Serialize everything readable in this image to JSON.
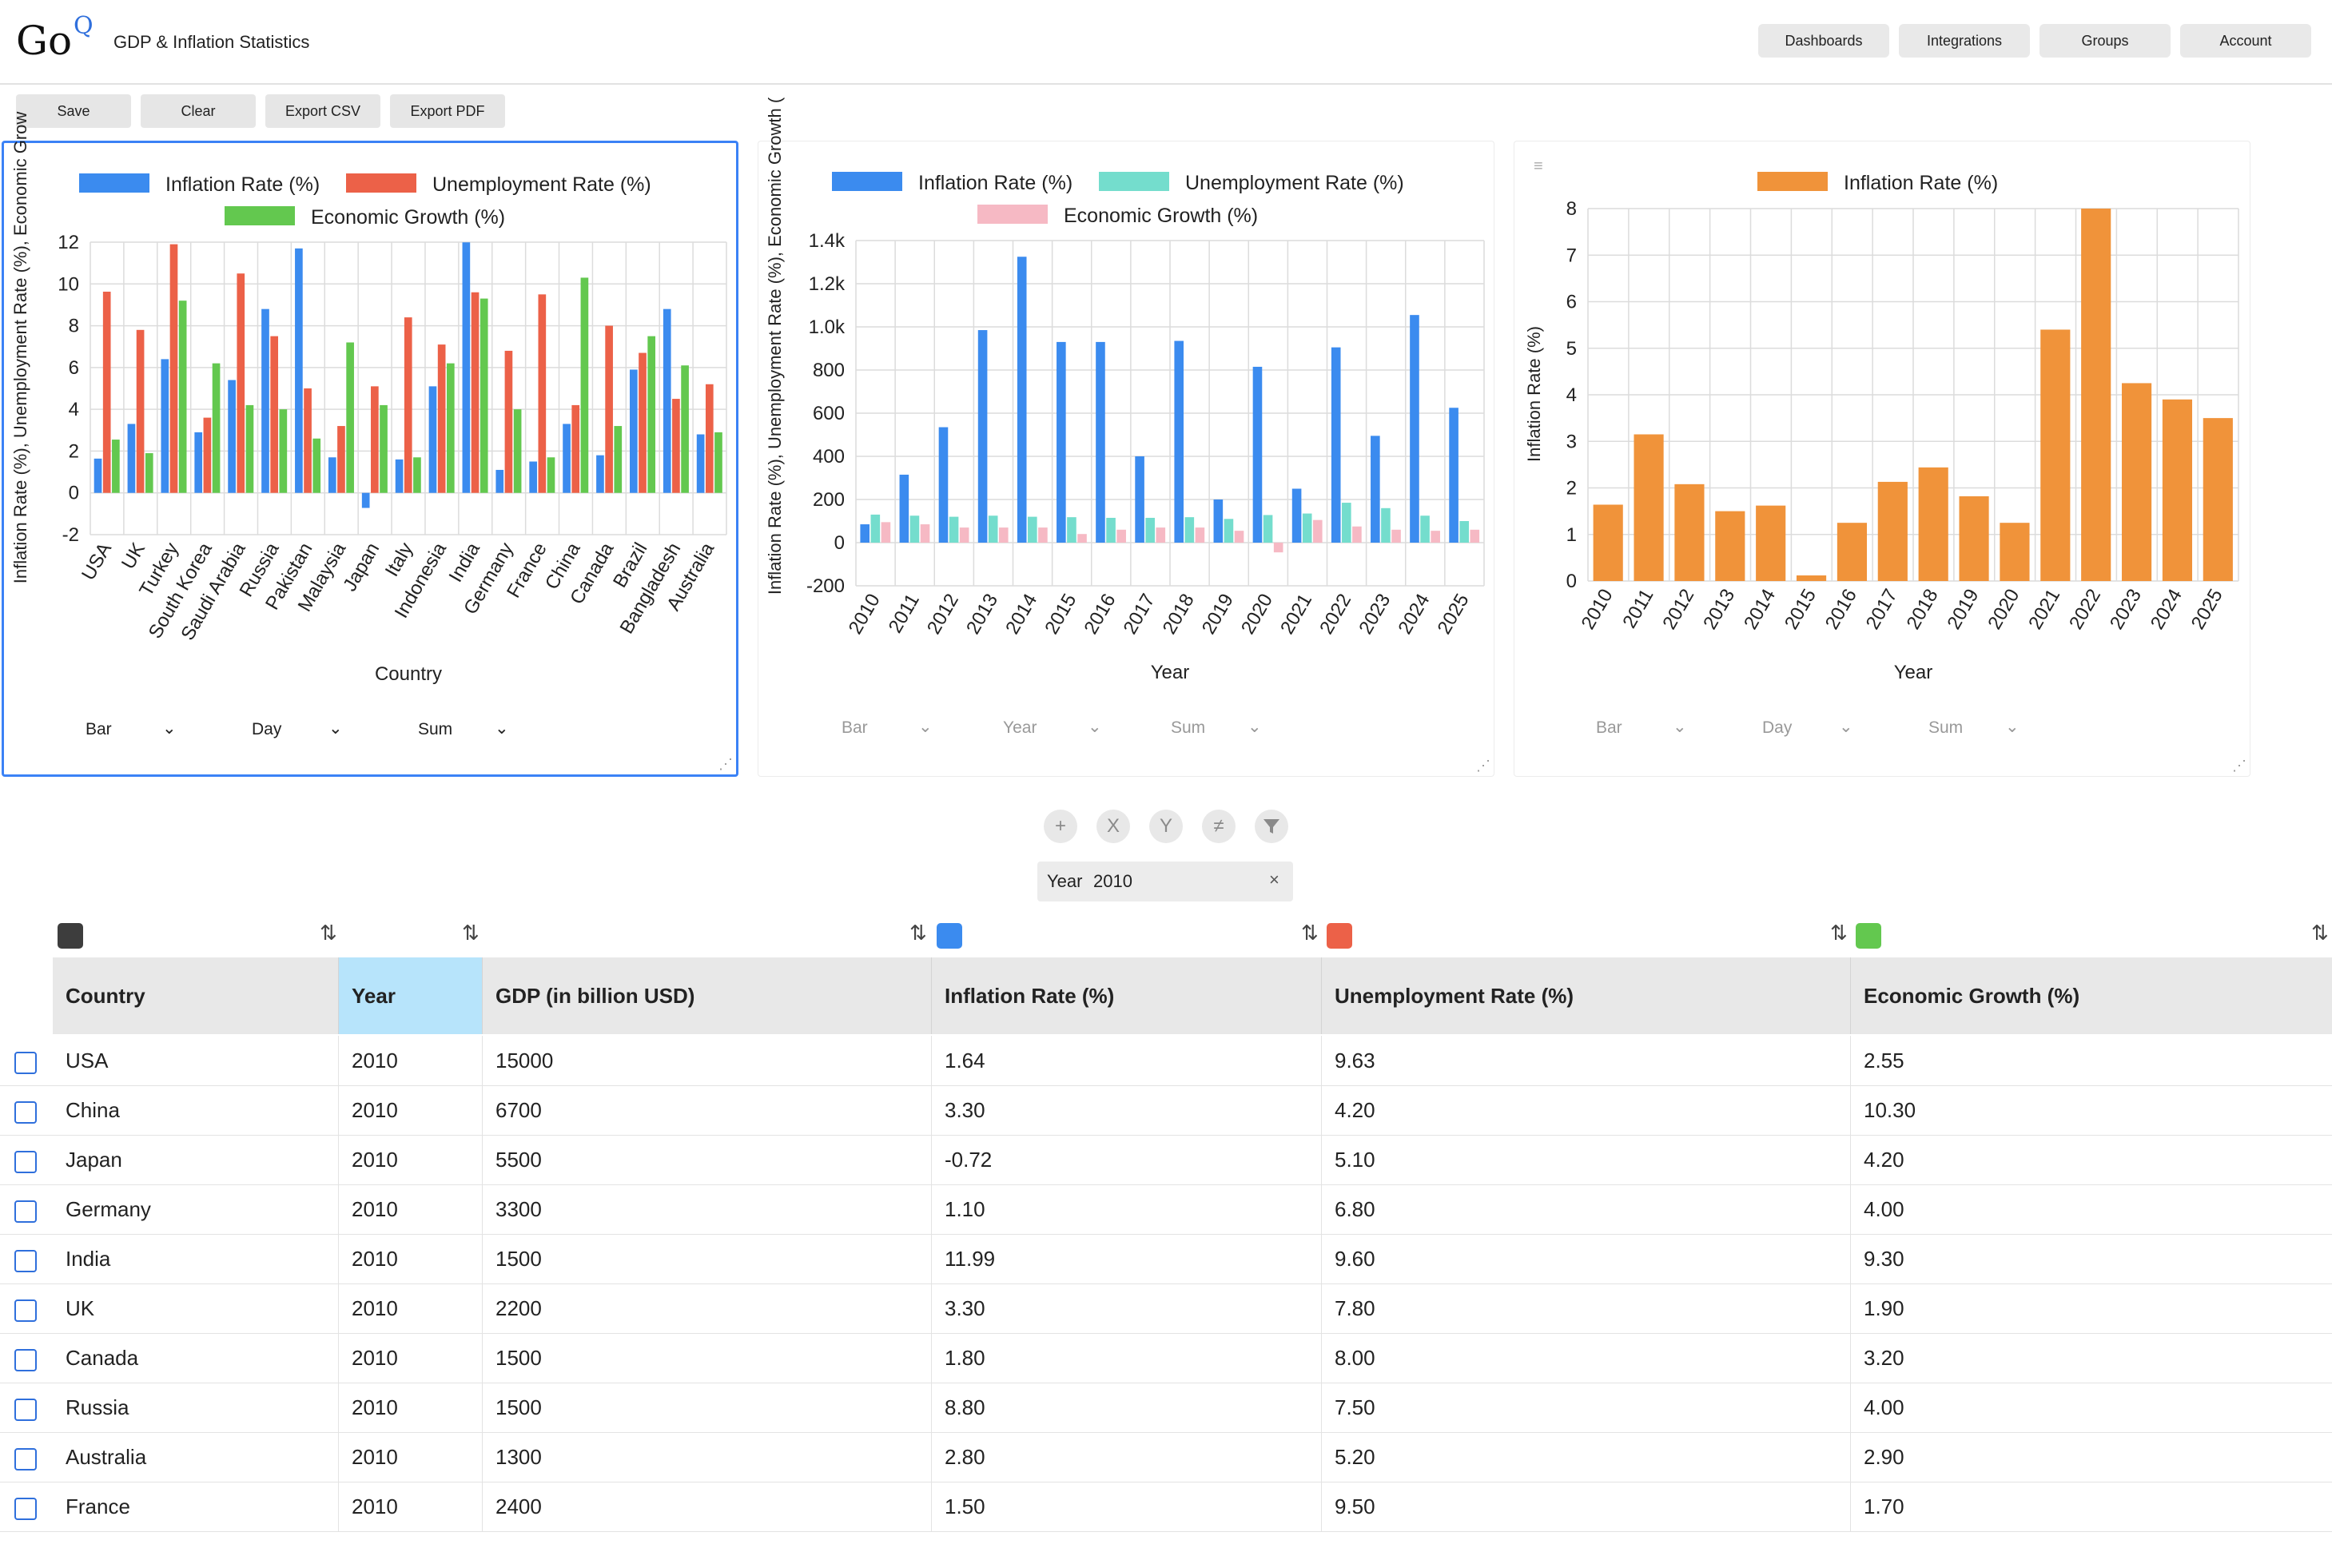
{
  "app": {
    "logo": "Go",
    "logo_sup": "Q",
    "title": "GDP & Inflation Statistics"
  },
  "nav": [
    "Dashboards",
    "Integrations",
    "Groups",
    "Account"
  ],
  "toolbar": [
    "Save",
    "Clear",
    "Export CSV",
    "Export PDF"
  ],
  "colors": {
    "inflation": "#3b8bef",
    "unemployment_1": "#ec6148",
    "growth_1": "#63c84f",
    "unemployment_2": "#74ddcd",
    "growth_2": "#f6b9c4",
    "inflation_3": "#f0933a",
    "active_border": "#3b82f6",
    "selected_header": "#b7e4fb"
  },
  "panels": [
    {
      "controls": {
        "type": "Bar",
        "granularity": "Day",
        "aggregate": "Sum"
      }
    },
    {
      "controls": {
        "type": "Bar",
        "granularity": "Year",
        "aggregate": "Sum"
      }
    },
    {
      "controls": {
        "type": "Bar",
        "granularity": "Day",
        "aggregate": "Sum"
      }
    }
  ],
  "chart_data": [
    {
      "type": "bar",
      "categories": [
        "USA",
        "UK",
        "Turkey",
        "South Korea",
        "Saudi Arabia",
        "Russia",
        "Pakistan",
        "Malaysia",
        "Japan",
        "Italy",
        "Indonesia",
        "India",
        "Germany",
        "France",
        "China",
        "Canada",
        "Brazil",
        "Bangladesh",
        "Australia"
      ],
      "series": [
        {
          "name": "Inflation Rate (%)",
          "values": [
            1.64,
            3.3,
            6.4,
            2.9,
            5.4,
            8.8,
            11.7,
            1.7,
            -0.72,
            1.6,
            5.1,
            11.99,
            1.1,
            1.5,
            3.3,
            1.8,
            5.9,
            8.8,
            2.8
          ]
        },
        {
          "name": "Unemployment Rate (%)",
          "values": [
            9.63,
            7.8,
            11.9,
            3.6,
            10.5,
            7.5,
            5.0,
            3.2,
            5.1,
            8.4,
            7.1,
            9.6,
            6.8,
            9.5,
            4.2,
            8.0,
            6.7,
            4.5,
            5.2
          ]
        },
        {
          "name": "Economic Growth (%)",
          "values": [
            2.55,
            1.9,
            9.2,
            6.2,
            4.2,
            4.0,
            2.6,
            7.2,
            4.2,
            1.7,
            6.2,
            9.3,
            4.0,
            1.7,
            10.3,
            3.2,
            7.5,
            6.1,
            2.9
          ]
        }
      ],
      "xlabel": "Country",
      "ylabel": "Inflation Rate (%),  Unemployment Rate (%),  Economic Grow",
      "ylim": [
        -2,
        12
      ],
      "yticks": [
        "-2",
        "0",
        "2",
        "4",
        "6",
        "8",
        "10",
        "12"
      ],
      "grid": true,
      "legend": "top"
    },
    {
      "type": "bar",
      "categories": [
        "2010",
        "2011",
        "2012",
        "2013",
        "2014",
        "2015",
        "2016",
        "2017",
        "2018",
        "2019",
        "2020",
        "2021",
        "2022",
        "2023",
        "2024",
        "2025"
      ],
      "series": [
        {
          "name": "Inflation Rate (%)",
          "values": [
            85,
            315,
            535,
            985,
            1325,
            930,
            930,
            400,
            935,
            200,
            815,
            250,
            905,
            495,
            1055,
            625
          ]
        },
        {
          "name": "Unemployment Rate (%)",
          "values": [
            130,
            125,
            120,
            125,
            120,
            118,
            115,
            115,
            118,
            110,
            128,
            135,
            185,
            160,
            125,
            100
          ]
        },
        {
          "name": "Economic Growth (%)",
          "values": [
            95,
            85,
            70,
            70,
            70,
            40,
            60,
            70,
            70,
            55,
            -45,
            105,
            75,
            60,
            55,
            60
          ]
        }
      ],
      "xlabel": "Year",
      "ylabel": "Inflation Rate (%),  Unemployment Rate (%),  Economic Growth (",
      "ylim": [
        -200,
        1400
      ],
      "yticks": [
        "-200",
        "0",
        "200",
        "400",
        "600",
        "800",
        "1.0k",
        "1.2k",
        "1.4k"
      ],
      "grid": true,
      "legend": "top"
    },
    {
      "type": "bar",
      "categories": [
        "2010",
        "2011",
        "2012",
        "2013",
        "2014",
        "2015",
        "2016",
        "2017",
        "2018",
        "2019",
        "2020",
        "2021",
        "2022",
        "2023",
        "2024",
        "2025"
      ],
      "series": [
        {
          "name": "Inflation Rate (%)",
          "values": [
            1.64,
            3.15,
            2.08,
            1.5,
            1.62,
            0.12,
            1.25,
            2.13,
            2.44,
            1.82,
            1.25,
            5.4,
            8.0,
            4.25,
            3.9,
            3.5
          ]
        }
      ],
      "xlabel": "Year",
      "ylabel": "Inflation Rate (%)",
      "ylim": [
        0,
        8
      ],
      "yticks": [
        "0",
        "1",
        "2",
        "3",
        "4",
        "5",
        "6",
        "7",
        "8"
      ],
      "grid": true,
      "legend": "top"
    }
  ],
  "filter": {
    "label": "Year",
    "value": "2010",
    "clear": "×"
  },
  "table": {
    "headers": [
      "Country",
      "Year",
      "GDP (in billion USD)",
      "Inflation Rate (%)",
      "Unemployment Rate (%)",
      "Economic Growth (%)"
    ],
    "rows": [
      [
        "USA",
        "2010",
        "15000",
        "1.64",
        "9.63",
        "2.55"
      ],
      [
        "China",
        "2010",
        "6700",
        "3.30",
        "4.20",
        "10.30"
      ],
      [
        "Japan",
        "2010",
        "5500",
        "-0.72",
        "5.10",
        "4.20"
      ],
      [
        "Germany",
        "2010",
        "3300",
        "1.10",
        "6.80",
        "4.00"
      ],
      [
        "India",
        "2010",
        "1500",
        "11.99",
        "9.60",
        "9.30"
      ],
      [
        "UK",
        "2010",
        "2200",
        "3.30",
        "7.80",
        "1.90"
      ],
      [
        "Canada",
        "2010",
        "1500",
        "1.80",
        "8.00",
        "3.20"
      ],
      [
        "Russia",
        "2010",
        "1500",
        "8.80",
        "7.50",
        "4.00"
      ],
      [
        "Australia",
        "2010",
        "1300",
        "2.80",
        "5.20",
        "2.90"
      ],
      [
        "France",
        "2010",
        "2400",
        "1.50",
        "9.50",
        "1.70"
      ]
    ]
  }
}
